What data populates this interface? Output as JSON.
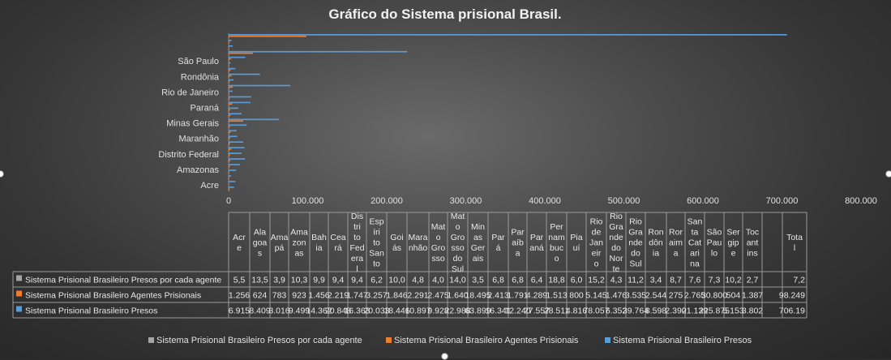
{
  "chart_data": {
    "type": "bar",
    "orientation": "horizontal",
    "title": "Gráfico do Sistema prisional Brasil.",
    "categories": [
      "Acre",
      "Alagoas",
      "Amapá",
      "Amazonas",
      "Bahia",
      "Ceará",
      "Distrito Federal",
      "Espírito Santo",
      "Goiás",
      "Maranhão",
      "Mato Grosso",
      "Mato Grosso do Sul",
      "Minas Gerais",
      "Pará",
      "Paraíba",
      "Paraná",
      "Pernambuco",
      "Piauí",
      "Rio de Janeiro",
      "Rio Grande do Norte",
      "Rio Grande do Sul",
      "Rondônia",
      "Roraima",
      "Santa Catarina",
      "São Paulo",
      "Sergipe",
      "Tocantins",
      "Total"
    ],
    "table_headers": [
      "Acre",
      "Alagoas",
      "Amapá",
      "Amazonas",
      "Bahia",
      "Ceará",
      "Distrito Federal",
      "Espírito Santo",
      "Goiás",
      "Maranhão",
      "Mato Grosso",
      "Mato Grosso do Sul",
      "Minas Gerais",
      "Pará",
      "Paraíba",
      "Paraná",
      "Pernambuco",
      "Piauí",
      "Rio de Janeiro",
      "Rio Grande do Norte",
      "Rio Grande do Sul",
      "Rondônia",
      "Roraima",
      "Santa Catarina",
      "São Paulo",
      "Sergipe",
      "Tocantins",
      "",
      "Total"
    ],
    "axis_category_labels": [
      "Acre",
      "Amazonas",
      "Distrito Federal",
      "Maranhão",
      "Minas Gerais",
      "Paraná",
      "Rio de Janeiro",
      "Rondônia",
      "São Paulo"
    ],
    "x_ticks": [
      "0",
      "100.000",
      "200.000",
      "300.000",
      "400.000",
      "500.000",
      "600.000",
      "700.000",
      "800.000"
    ],
    "xlim": [
      0,
      800000
    ],
    "grid": false,
    "legend_position": "bottom",
    "series": [
      {
        "name": "Sistema Prisional Brasileiro Presos por cada agente",
        "color": "#a5a5a5",
        "values": [
          5.5,
          13.5,
          3.9,
          10.3,
          9.9,
          9.4,
          9.4,
          6.2,
          10.0,
          4.8,
          4.0,
          14.0,
          3.5,
          6.8,
          6.8,
          6.4,
          18.8,
          6.0,
          15.2,
          4.3,
          11.2,
          3.4,
          8.7,
          7.6,
          7.3,
          10.2,
          2.7,
          7.2
        ],
        "cells": [
          "5,5",
          "13,5",
          "3,9",
          "10,3",
          "9,9",
          "9,4",
          "9,4",
          "6,2",
          "10,0",
          "4,8",
          "4,0",
          "14,0",
          "3,5",
          "6,8",
          "6,8",
          "6,4",
          "18,8",
          "6,0",
          "15,2",
          "4,3",
          "11,2",
          "3,4",
          "8,7",
          "7,6",
          "7,3",
          "10,2",
          "2,7",
          "",
          "7,2"
        ]
      },
      {
        "name": "Sistema Prisional Brasileiro Agentes Prisionais",
        "color": "#ed7d31",
        "values": [
          1256,
          624,
          783,
          923,
          1456,
          2219,
          1747,
          3257,
          1846,
          2291,
          2475,
          1640,
          18495,
          2413,
          1791,
          4289,
          1513,
          800,
          5145,
          1476,
          3535,
          2544,
          275,
          2765,
          30800,
          504,
          1387,
          98249
        ],
        "cells": [
          "1.256",
          "624",
          "783",
          "923",
          "1.456",
          "2.219",
          "1.747",
          "3.257",
          "1.846",
          "2.291",
          "2.475",
          "1.640",
          "18.495",
          "2.413",
          "1.791",
          "4.289",
          "1.513",
          "800",
          "5.145",
          "1.476",
          "3.535",
          "2.544",
          "275",
          "2.765",
          "30.800",
          "504",
          "1.387",
          "",
          "98.249"
        ]
      },
      {
        "name": "Sistema Prisional Brasileiro Presos",
        "color": "#5b9bd5",
        "values": [
          6915,
          8409,
          3016,
          9499,
          14362,
          20848,
          16363,
          20033,
          18446,
          10897,
          9928,
          22988,
          63899,
          16341,
          12240,
          27557,
          28511,
          4816,
          78057,
          6352,
          39764,
          8598,
          2390,
          21139,
          225875,
          5153,
          3802,
          706190
        ],
        "cells": [
          "6.915",
          "8.409",
          "3.016",
          "9.499",
          "14.362",
          "20.848",
          "16.363",
          "20.033",
          "18.446",
          "10.897",
          "9.928",
          "22.988",
          "63.899",
          "16.341",
          "12.240",
          "27.557",
          "28.511",
          "4.816",
          "78.057",
          "6.352",
          "39.764",
          "8.598",
          "2.390",
          "21.139",
          "225.875",
          "5.153",
          "3.802",
          "",
          "706.19"
        ]
      }
    ]
  }
}
